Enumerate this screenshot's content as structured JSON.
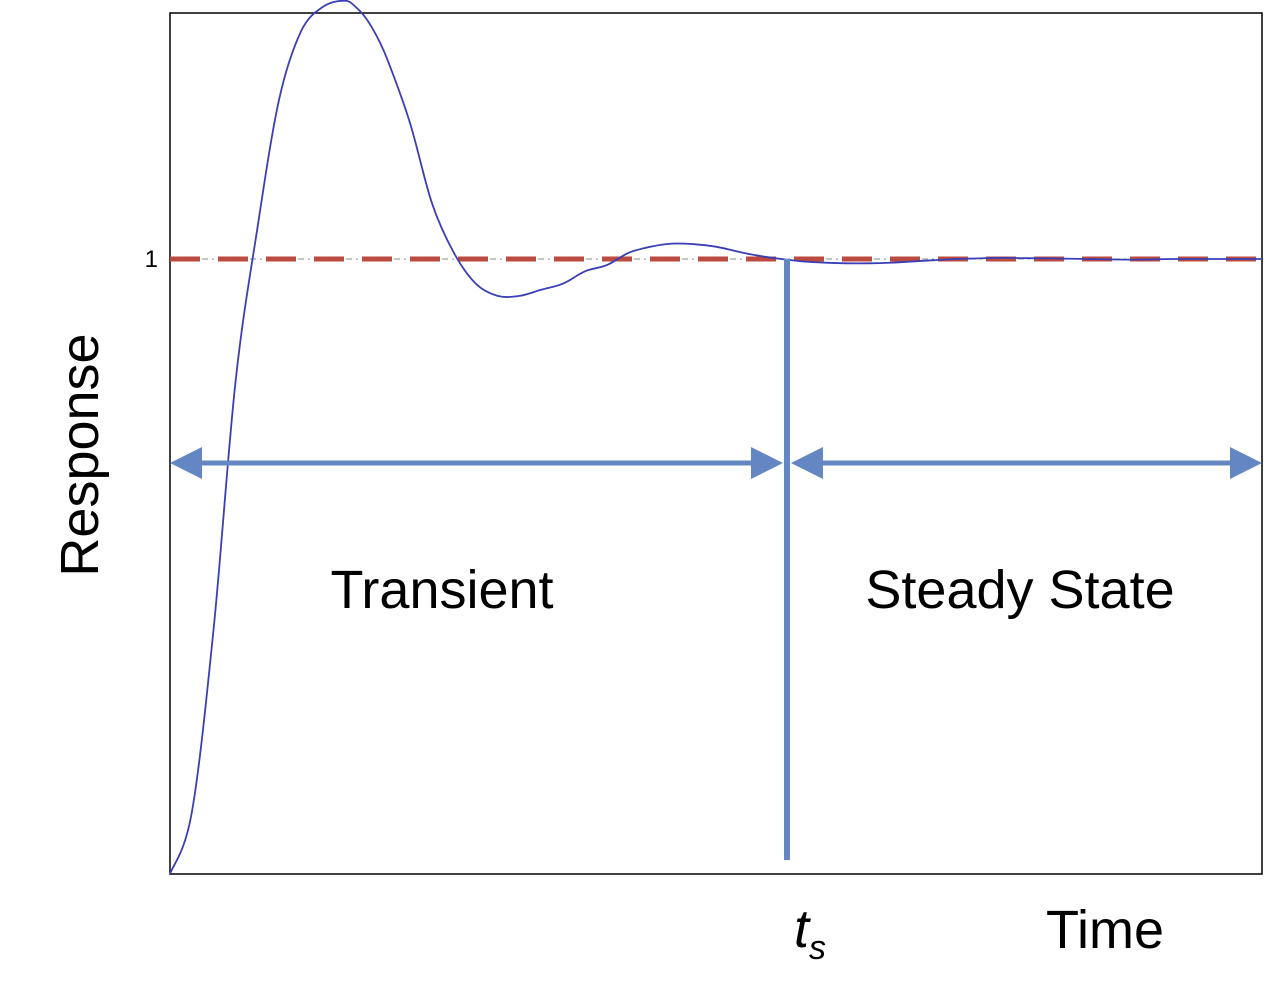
{
  "chart_data": {
    "type": "line",
    "xlabel": "Time",
    "ylabel": "Response",
    "y_tick_label": "1",
    "xlim": [
      0,
      1
    ],
    "ylim": [
      0,
      1.4
    ],
    "series": [
      {
        "color": "#3a3fb5",
        "x": [
          0.0,
          0.02,
          0.04,
          0.06,
          0.08,
          0.1,
          0.12,
          0.14,
          0.16,
          0.17,
          0.18,
          0.19,
          0.2,
          0.22,
          0.24,
          0.26,
          0.28,
          0.3,
          0.32,
          0.34,
          0.36,
          0.38,
          0.4,
          0.42,
          0.44,
          0.46,
          0.48,
          0.5,
          0.52,
          0.54,
          0.56,
          0.58,
          0.6,
          0.62,
          0.64,
          0.66,
          0.68,
          0.7,
          0.72,
          0.74,
          0.76,
          0.78,
          0.8,
          0.84,
          0.88,
          0.92,
          0.96,
          1.0
        ],
        "y": [
          0.0,
          0.1,
          0.4,
          0.8,
          1.05,
          1.26,
          1.37,
          1.41,
          1.42,
          1.41,
          1.39,
          1.36,
          1.32,
          1.22,
          1.09,
          1.01,
          0.96,
          0.94,
          0.94,
          0.95,
          0.96,
          0.98,
          0.99,
          1.01,
          1.02,
          1.025,
          1.024,
          1.02,
          1.012,
          1.005,
          1.0,
          0.996,
          0.994,
          0.993,
          0.993,
          0.994,
          0.996,
          0.998,
          1.0,
          1.001,
          1.002,
          1.0015,
          1.001,
          1.0,
          0.999,
          1.0,
          1.0,
          1.0
        ]
      }
    ],
    "reference_line": {
      "y": 1,
      "color": "#bd4a3f",
      "style": "dashed"
    },
    "settling_time": {
      "x": 0.565,
      "label": "t",
      "subscript": "s"
    },
    "regions": [
      {
        "label": "Transient"
      },
      {
        "label": "Steady State"
      }
    ],
    "arrow_color": "#6487c4",
    "grid": false
  }
}
